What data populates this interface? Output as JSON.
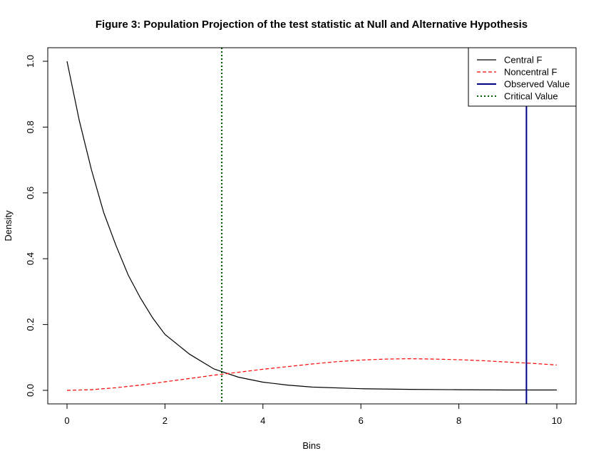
{
  "chart_data": {
    "type": "line",
    "title": "Figure 3: Population Projection of the test statistic at Null and Alternative Hypothesis",
    "xlabel": "Bins",
    "ylabel": "Density",
    "xlim": [
      0,
      10
    ],
    "ylim": [
      0,
      1.0
    ],
    "x_ticks": [
      0,
      2,
      4,
      6,
      8,
      10
    ],
    "y_ticks": [
      0.0,
      0.2,
      0.4,
      0.6,
      0.8,
      1.0
    ],
    "x_tick_labels": [
      "0",
      "2",
      "4",
      "6",
      "8",
      "10"
    ],
    "y_tick_labels": [
      "0.0",
      "0.2",
      "0.4",
      "0.6",
      "0.8",
      "1.0"
    ],
    "grid": false,
    "legend_position": "top-right",
    "series": [
      {
        "name": "Central F",
        "color": "#000000",
        "style": "solid",
        "x": [
          0,
          0.25,
          0.5,
          0.75,
          1,
          1.25,
          1.5,
          1.75,
          2,
          2.5,
          3,
          3.5,
          4,
          4.5,
          5,
          6,
          7,
          8,
          9,
          10
        ],
        "y": [
          1.0,
          0.82,
          0.67,
          0.54,
          0.44,
          0.35,
          0.28,
          0.22,
          0.17,
          0.11,
          0.065,
          0.04,
          0.025,
          0.016,
          0.01,
          0.005,
          0.003,
          0.002,
          0.001,
          0.001
        ]
      },
      {
        "name": "Noncentral F",
        "color": "#ff0000",
        "style": "dashed",
        "x": [
          0,
          0.5,
          1,
          1.5,
          2,
          2.5,
          3,
          3.5,
          4,
          4.5,
          5,
          5.5,
          6,
          6.5,
          7,
          7.5,
          8,
          8.5,
          9,
          9.5,
          10
        ],
        "y": [
          0.0,
          0.002,
          0.008,
          0.016,
          0.026,
          0.036,
          0.046,
          0.055,
          0.064,
          0.072,
          0.08,
          0.087,
          0.092,
          0.095,
          0.096,
          0.095,
          0.093,
          0.09,
          0.086,
          0.082,
          0.077
        ]
      },
      {
        "name": "Observed Value",
        "color": "#00008b",
        "style": "solid",
        "vline": 9.38
      },
      {
        "name": "Critical Value",
        "color": "#006400",
        "style": "dotted",
        "vline": 3.16
      }
    ]
  }
}
